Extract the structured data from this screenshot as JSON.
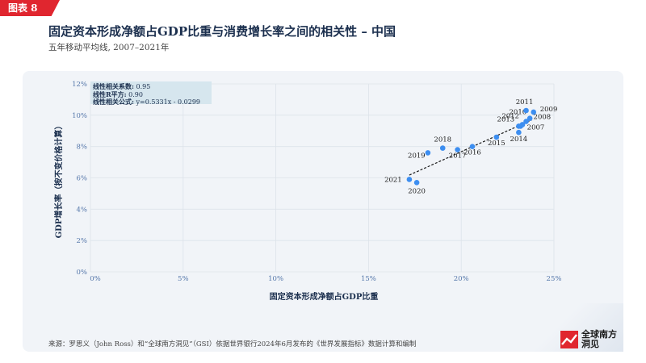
{
  "tag": "图表 8",
  "title": "固定资本形成净额占GDP比重与消费增长率之间的相关性 – 中国",
  "subtitle": "五年移动平均线, 2007–2021年",
  "source": "来源：罗思义（John Ross）和“全球南方洞见”（GSI）依据世界银行2024年6月发布的《世界发展指标》数据计算和编制",
  "logo": {
    "line1": "全球南方",
    "line2": "洞见"
  },
  "stats": {
    "corr_label": "线性相关系数:",
    "corr_value": "0.95",
    "r2_label": "线性R平方:",
    "r2_value": "0.90",
    "formula_label": "线性相关公式:",
    "formula_value": "y=0.5331x - 0.0299"
  },
  "chart_data": {
    "type": "scatter",
    "xlabel": "固定资本形成净额占GDP比重",
    "ylabel": "GDP增长率（按不变价格计算）",
    "xlim": [
      0,
      25
    ],
    "ylim": [
      0,
      12
    ],
    "xticks": [
      "0%",
      "5%",
      "10%",
      "15%",
      "20%",
      "25%"
    ],
    "yticks": [
      "0%",
      "2%",
      "4%",
      "6%",
      "8%",
      "10%",
      "12%"
    ],
    "grid": true,
    "trendline": {
      "slope": 0.5331,
      "intercept": -2.99,
      "x_range": [
        17.2,
        23.8
      ]
    },
    "points": [
      {
        "label": "2007",
        "x": 23.2,
        "y": 9.3
      },
      {
        "label": "2008",
        "x": 23.5,
        "y": 9.6
      },
      {
        "label": "2009",
        "x": 23.9,
        "y": 10.2
      },
      {
        "label": "2010",
        "x": 23.7,
        "y": 9.8
      },
      {
        "label": "2011",
        "x": 23.5,
        "y": 10.3
      },
      {
        "label": "2012",
        "x": 23.3,
        "y": 9.4
      },
      {
        "label": "2013",
        "x": 23.1,
        "y": 9.3
      },
      {
        "label": "2014",
        "x": 23.1,
        "y": 8.9
      },
      {
        "label": "2015",
        "x": 21.9,
        "y": 8.6
      },
      {
        "label": "2016",
        "x": 20.6,
        "y": 8.0
      },
      {
        "label": "2017",
        "x": 19.8,
        "y": 7.8
      },
      {
        "label": "2018",
        "x": 19.0,
        "y": 7.9
      },
      {
        "label": "2019",
        "x": 18.2,
        "y": 7.6
      },
      {
        "label": "2020",
        "x": 17.6,
        "y": 5.7
      },
      {
        "label": "2021",
        "x": 17.2,
        "y": 5.9
      }
    ],
    "colors": {
      "point": "#3d8ef0",
      "trend": "#1a1a1a",
      "grid": "#dde3ea"
    }
  }
}
